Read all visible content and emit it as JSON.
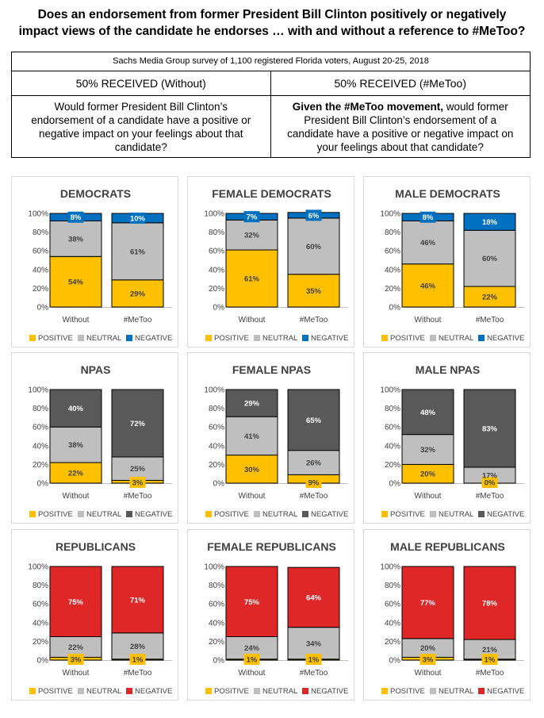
{
  "title": {
    "line1": "Does an endorsement from former President Bill Clinton positively or negatively",
    "line2": "impact views of the candidate he endorses … with and without a reference to #MeToo?"
  },
  "header": {
    "survey": "Sachs Media Group survey of 1,100 registered Florida voters, August 20-25, 2018",
    "left_label": "50% RECEIVED (Without)",
    "right_label": "50% RECEIVED (#MeToo)",
    "left_question": "Would former President Bill Clinton’s endorsement of a candidate have a positive or negative impact on your feelings about that candidate?",
    "right_question_bold": "Given the #MeToo movement,",
    "right_question_rest": " would former President Bill Clinton’s endorsement of a candidate have a positive or negative impact on your feelings about that candidate?"
  },
  "colors": {
    "positive": "#FFC000",
    "neutral": "#BFBFBF",
    "negative_dem": "#0070C0",
    "negative_npa": "#595959",
    "negative_rep": "#E02727"
  },
  "chart_data": [
    {
      "type": "bar",
      "stacked": true,
      "title": "DEMOCRATS",
      "categories": [
        "Without",
        "#MeToo"
      ],
      "ylim": [
        0,
        100
      ],
      "yticks": [
        "0%",
        "20%",
        "40%",
        "60%",
        "80%",
        "100%"
      ],
      "legend": [
        "POSITIVE",
        "NEUTRAL",
        "NEGATIVE"
      ],
      "negative_color": "#0070C0",
      "series": [
        {
          "name": "POSITIVE",
          "values": [
            54,
            29
          ],
          "labels": [
            "54%",
            "29%"
          ]
        },
        {
          "name": "NEUTRAL",
          "values": [
            38,
            61
          ],
          "labels": [
            "38%",
            "61%"
          ]
        },
        {
          "name": "NEGATIVE",
          "values": [
            8,
            10
          ],
          "labels": [
            "8%",
            "10%"
          ]
        }
      ]
    },
    {
      "type": "bar",
      "stacked": true,
      "title": "FEMALE DEMOCRATS",
      "categories": [
        "Without",
        "#MeToo"
      ],
      "ylim": [
        0,
        100
      ],
      "yticks": [
        "0%",
        "20%",
        "40%",
        "60%",
        "80%",
        "100%"
      ],
      "legend": [
        "POSITIVE",
        "NEUTRAL",
        "NEGATIVE"
      ],
      "negative_color": "#0070C0",
      "series": [
        {
          "name": "POSITIVE",
          "values": [
            61,
            35
          ],
          "labels": [
            "61%",
            "35%"
          ]
        },
        {
          "name": "NEUTRAL",
          "values": [
            32,
            60
          ],
          "labels": [
            "32%",
            "60%"
          ]
        },
        {
          "name": "NEGATIVE",
          "values": [
            7,
            6
          ],
          "labels": [
            "7%",
            "6%"
          ]
        }
      ]
    },
    {
      "type": "bar",
      "stacked": true,
      "title": "MALE DEMOCRATS",
      "categories": [
        "Without",
        "#MeToo"
      ],
      "ylim": [
        0,
        100
      ],
      "yticks": [
        "0%",
        "20%",
        "40%",
        "60%",
        "80%",
        "100%"
      ],
      "legend": [
        "POSITIVE",
        "NEUTRAL",
        "NEGATIVE"
      ],
      "negative_color": "#0070C0",
      "series": [
        {
          "name": "POSITIVE",
          "values": [
            46,
            22
          ],
          "labels": [
            "46%",
            "22%"
          ]
        },
        {
          "name": "NEUTRAL",
          "values": [
            46,
            60
          ],
          "labels": [
            "46%",
            "60%"
          ]
        },
        {
          "name": "NEGATIVE",
          "values": [
            8,
            18
          ],
          "labels": [
            "8%",
            "18%"
          ]
        }
      ]
    },
    {
      "type": "bar",
      "stacked": true,
      "title": "NPAS",
      "categories": [
        "Without",
        "#MeToo"
      ],
      "ylim": [
        0,
        100
      ],
      "yticks": [
        "0%",
        "20%",
        "40%",
        "60%",
        "80%",
        "100%"
      ],
      "legend": [
        "POSITIVE",
        "NEUTRAL",
        "NEGATIVE"
      ],
      "negative_color": "#595959",
      "series": [
        {
          "name": "POSITIVE",
          "values": [
            22,
            3
          ],
          "labels": [
            "22%",
            "3%"
          ]
        },
        {
          "name": "NEUTRAL",
          "values": [
            38,
            25
          ],
          "labels": [
            "38%",
            "25%"
          ]
        },
        {
          "name": "NEGATIVE",
          "values": [
            40,
            72
          ],
          "labels": [
            "40%",
            "72%"
          ]
        }
      ]
    },
    {
      "type": "bar",
      "stacked": true,
      "title": "FEMALE NPAS",
      "categories": [
        "Without",
        "#MeToo"
      ],
      "ylim": [
        0,
        100
      ],
      "yticks": [
        "0%",
        "20%",
        "40%",
        "60%",
        "80%",
        "100%"
      ],
      "legend": [
        "POSITIVE",
        "NEUTRAL",
        "NEGATIVE"
      ],
      "negative_color": "#595959",
      "series": [
        {
          "name": "POSITIVE",
          "values": [
            30,
            9
          ],
          "labels": [
            "30%",
            "9%"
          ]
        },
        {
          "name": "NEUTRAL",
          "values": [
            41,
            26
          ],
          "labels": [
            "41%",
            "26%"
          ]
        },
        {
          "name": "NEGATIVE",
          "values": [
            29,
            65
          ],
          "labels": [
            "29%",
            "65%"
          ]
        }
      ]
    },
    {
      "type": "bar",
      "stacked": true,
      "title": "MALE NPAS",
      "categories": [
        "Without",
        "#MeToo"
      ],
      "ylim": [
        0,
        100
      ],
      "yticks": [
        "0%",
        "20%",
        "40%",
        "60%",
        "80%",
        "100%"
      ],
      "legend": [
        "POSITIVE",
        "NEUTRAL",
        "NEGATIVE"
      ],
      "negative_color": "#595959",
      "series": [
        {
          "name": "POSITIVE",
          "values": [
            20,
            0
          ],
          "labels": [
            "20%",
            "0%"
          ]
        },
        {
          "name": "NEUTRAL",
          "values": [
            32,
            17
          ],
          "labels": [
            "32%",
            "17%"
          ]
        },
        {
          "name": "NEGATIVE",
          "values": [
            48,
            83
          ],
          "labels": [
            "48%",
            "83%"
          ]
        }
      ]
    },
    {
      "type": "bar",
      "stacked": true,
      "title": "REPUBLICANS",
      "categories": [
        "Without",
        "#MeToo"
      ],
      "ylim": [
        0,
        100
      ],
      "yticks": [
        "0%",
        "20%",
        "40%",
        "60%",
        "80%",
        "100%"
      ],
      "legend": [
        "POSITIVE",
        "NEUTRAL",
        "NEGATIVE"
      ],
      "negative_color": "#E02727",
      "series": [
        {
          "name": "POSITIVE",
          "values": [
            3,
            1
          ],
          "labels": [
            "3%",
            "1%"
          ]
        },
        {
          "name": "NEUTRAL",
          "values": [
            22,
            28
          ],
          "labels": [
            "22%",
            "28%"
          ]
        },
        {
          "name": "NEGATIVE",
          "values": [
            75,
            71
          ],
          "labels": [
            "75%",
            "71%"
          ]
        }
      ]
    },
    {
      "type": "bar",
      "stacked": true,
      "title": "FEMALE REPUBLICANS",
      "categories": [
        "Without",
        "#MeToo"
      ],
      "ylim": [
        0,
        100
      ],
      "yticks": [
        "0%",
        "20%",
        "40%",
        "60%",
        "80%",
        "100%"
      ],
      "legend": [
        "POSITIVE",
        "NEUTRAL",
        "NEGATIVE"
      ],
      "negative_color": "#E02727",
      "series": [
        {
          "name": "POSITIVE",
          "values": [
            1,
            1
          ],
          "labels": [
            "1%",
            "1%"
          ]
        },
        {
          "name": "NEUTRAL",
          "values": [
            24,
            34
          ],
          "labels": [
            "24%",
            "34%"
          ]
        },
        {
          "name": "NEGATIVE",
          "values": [
            75,
            64
          ],
          "labels": [
            "75%",
            "64%"
          ]
        }
      ]
    },
    {
      "type": "bar",
      "stacked": true,
      "title": "MALE REPUBLICANS",
      "categories": [
        "Without",
        "#MeToo"
      ],
      "ylim": [
        0,
        100
      ],
      "yticks": [
        "0%",
        "20%",
        "40%",
        "60%",
        "80%",
        "100%"
      ],
      "legend": [
        "POSITIVE",
        "NEUTRAL",
        "NEGATIVE"
      ],
      "negative_color": "#E02727",
      "series": [
        {
          "name": "POSITIVE",
          "values": [
            3,
            1
          ],
          "labels": [
            "3%",
            "1%"
          ]
        },
        {
          "name": "NEUTRAL",
          "values": [
            20,
            21
          ],
          "labels": [
            "20%",
            "21%"
          ]
        },
        {
          "name": "NEGATIVE",
          "values": [
            77,
            78
          ],
          "labels": [
            "77%",
            "78%"
          ]
        }
      ]
    }
  ]
}
